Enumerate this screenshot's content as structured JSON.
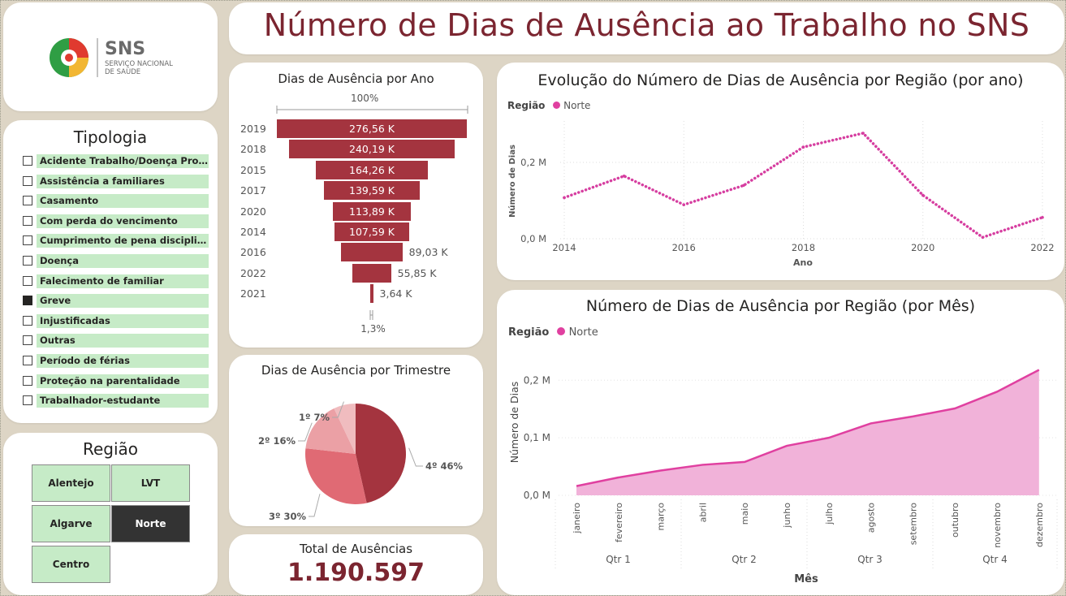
{
  "header": {
    "title": "Número de Dias de Ausência ao Trabalho no SNS"
  },
  "logo": {
    "abbr": "SNS",
    "line1": "SERVIÇO NACIONAL",
    "line2": "DE SAÚDE"
  },
  "tipologia": {
    "title": "Tipologia",
    "items": [
      {
        "label": "Acidente Trabalho/Doença Profiss...",
        "checked": false
      },
      {
        "label": "Assistência a familiares",
        "checked": false
      },
      {
        "label": "Casamento",
        "checked": false
      },
      {
        "label": "Com perda do vencimento",
        "checked": false
      },
      {
        "label": "Cumprimento de pena disciplinar",
        "checked": false
      },
      {
        "label": "Doença",
        "checked": false
      },
      {
        "label": "Falecimento de familiar",
        "checked": false
      },
      {
        "label": "Greve",
        "checked": true
      },
      {
        "label": "Injustificadas",
        "checked": false
      },
      {
        "label": "Outras",
        "checked": false
      },
      {
        "label": "Período de férias",
        "checked": false
      },
      {
        "label": "Proteção na parentalidade",
        "checked": false
      },
      {
        "label": "Trabalhador-estudante",
        "checked": false
      }
    ]
  },
  "regiao": {
    "title": "Região",
    "tiles": [
      {
        "label": "Alentejo",
        "selected": false
      },
      {
        "label": "LVT",
        "selected": false
      },
      {
        "label": "Algarve",
        "selected": false
      },
      {
        "label": "Norte",
        "selected": true
      },
      {
        "label": "Centro",
        "selected": false
      }
    ]
  },
  "total": {
    "label": "Total de Ausências",
    "value": "1.190.597"
  },
  "colors": {
    "accent": "#7b2530",
    "bar": "#a4343f",
    "pink": "#e040a0",
    "tile": "#c6ebc7",
    "selected_tile": "#333333"
  },
  "chart_data": [
    {
      "type": "bar",
      "subtype": "funnel",
      "title": "Dias de Ausência por Ano",
      "top_label": "100%",
      "bottom_label": "1,3%",
      "categories": [
        "2019",
        "2018",
        "2015",
        "2017",
        "2020",
        "2014",
        "2016",
        "2022",
        "2021"
      ],
      "values": [
        276560,
        240190,
        164260,
        139590,
        113890,
        107590,
        89030,
        55850,
        3640
      ],
      "labels": [
        "276,56 K",
        "240,19 K",
        "164,26 K",
        "139,59 K",
        "113,89 K",
        "107,59 K",
        "89,03 K",
        "55,85 K",
        "3,64 K"
      ]
    },
    {
      "type": "pie",
      "title": "Dias de Ausência por Trimestre",
      "categories": [
        "4º",
        "3º",
        "2º",
        "1º"
      ],
      "values": [
        46,
        30,
        16,
        7
      ],
      "labels": [
        "4º 46%",
        "3º 30%",
        "2º 16%",
        "1º 7%"
      ],
      "colors": [
        "#a4343f",
        "#e06a74",
        "#eba0a5",
        "#f0bcbf"
      ]
    },
    {
      "type": "line",
      "title": "Evolução do Número de Dias de Ausência por Região (por ano)",
      "legend_title": "Região",
      "series": [
        {
          "name": "Norte",
          "values": [
            107590,
            164260,
            89030,
            139590,
            240190,
            276560,
            113890,
            3640,
            55850
          ]
        }
      ],
      "x": [
        2014,
        2015,
        2016,
        2017,
        2018,
        2019,
        2020,
        2021,
        2022
      ],
      "xticks": [
        "2014",
        "2016",
        "2018",
        "2020",
        "2022"
      ],
      "yticks": [
        "0,0 M",
        "0,2 M"
      ],
      "xlabel": "Ano",
      "ylabel": "Número de Dias",
      "ylim": [
        0,
        300000
      ],
      "grid": true
    },
    {
      "type": "area",
      "title": "Número de Dias de Ausência por Região (por Mês)",
      "legend_title": "Região",
      "categories": [
        "janeiro",
        "fevereiro",
        "março",
        "abril",
        "maio",
        "junho",
        "julho",
        "agosto",
        "setembro",
        "outubro",
        "novembro",
        "dezembro"
      ],
      "quarters": [
        "Qtr 1",
        "Qtr 2",
        "Qtr 3",
        "Qtr 4"
      ],
      "series": [
        {
          "name": "Norte",
          "values": [
            16000,
            31000,
            43000,
            53000,
            58000,
            86000,
            100000,
            125000,
            137000,
            151000,
            180000,
            218000
          ]
        }
      ],
      "yticks": [
        "0,0 M",
        "0,1 M",
        "0,2 M"
      ],
      "xlabel": "Mês",
      "ylabel": "Número de Dias",
      "ylim": [
        0,
        230000
      ]
    }
  ]
}
